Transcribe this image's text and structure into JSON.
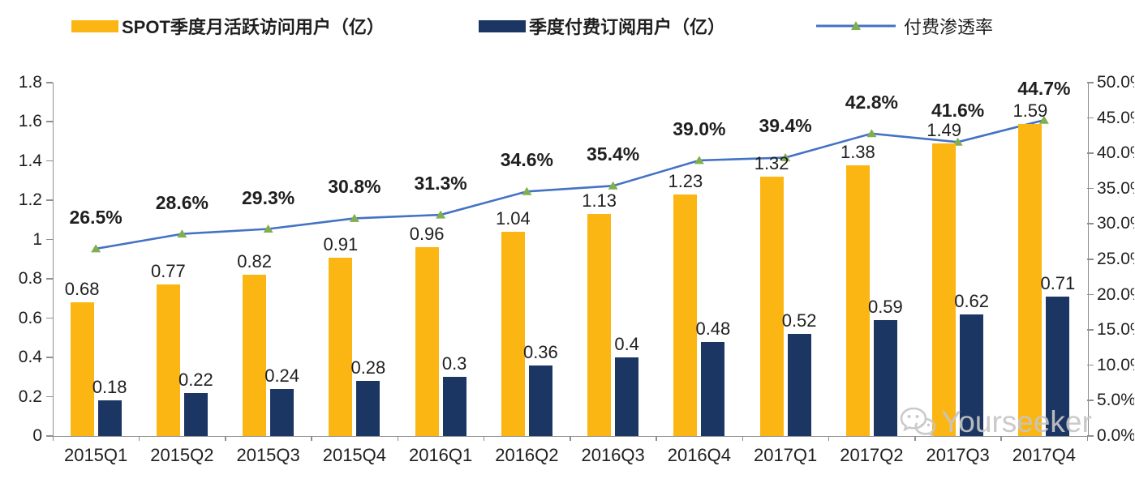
{
  "legend": [
    {
      "label": "SPOT季度月活跃访问用户（亿）",
      "type": "bar",
      "color": "#FCB613"
    },
    {
      "label": "季度付费订阅用户（亿）",
      "type": "bar",
      "color": "#1C3663"
    },
    {
      "label": "付费渗透率",
      "type": "line",
      "color": "#4472C4",
      "marker_color": "#81AE4F"
    }
  ],
  "watermark": {
    "icon": "wechat-icon",
    "text": "Yourseeker"
  },
  "chart_data": {
    "type": "bar",
    "subtype": "grouped-bars-with-line",
    "title": "",
    "xlabel": "",
    "ylabel_left": "",
    "ylabel_right": "",
    "grid": false,
    "legend_position": "top",
    "categories": [
      "2015Q1",
      "2015Q2",
      "2015Q3",
      "2015Q4",
      "2016Q1",
      "2016Q2",
      "2016Q3",
      "2016Q4",
      "2017Q1",
      "2017Q2",
      "2017Q3",
      "2017Q4"
    ],
    "series": [
      {
        "name": "SPOT季度月活跃访问用户（亿）",
        "type": "bar",
        "axis": "left",
        "color": "#FCB613",
        "values": [
          0.68,
          0.77,
          0.82,
          0.91,
          0.96,
          1.04,
          1.13,
          1.23,
          1.32,
          1.38,
          1.49,
          1.59
        ],
        "labels": [
          "0.68",
          "0.77",
          "0.82",
          "0.91",
          "0.96",
          "1.04",
          "1.13",
          "1.23",
          "1.32",
          "1.38",
          "1.49",
          "1.59"
        ]
      },
      {
        "name": "季度付费订阅用户（亿）",
        "type": "bar",
        "axis": "left",
        "color": "#1C3663",
        "values": [
          0.18,
          0.22,
          0.24,
          0.28,
          0.3,
          0.36,
          0.4,
          0.48,
          0.52,
          0.59,
          0.62,
          0.71
        ],
        "labels": [
          "0.18",
          "0.22",
          "0.24",
          "0.28",
          "0.3",
          "0.36",
          "0.4",
          "0.48",
          "0.52",
          "0.59",
          "0.62",
          "0.71"
        ]
      },
      {
        "name": "付费渗透率",
        "type": "line",
        "axis": "right",
        "color": "#4472C4",
        "marker": "triangle",
        "marker_color": "#81AE4F",
        "values": [
          26.5,
          28.6,
          29.3,
          30.8,
          31.3,
          34.6,
          35.4,
          39.0,
          39.4,
          42.8,
          41.6,
          44.7
        ],
        "labels": [
          "26.5%",
          "28.6%",
          "29.3%",
          "30.8%",
          "31.3%",
          "34.6%",
          "35.4%",
          "39.0%",
          "39.4%",
          "42.8%",
          "41.6%",
          "44.7%"
        ]
      }
    ],
    "left_axis": {
      "min": 0,
      "max": 1.8,
      "step": 0.2,
      "ticks": [
        "0",
        "0.2",
        "0.4",
        "0.6",
        "0.8",
        "1",
        "1.2",
        "1.4",
        "1.6",
        "1.8"
      ]
    },
    "right_axis": {
      "min": 0,
      "max": 50,
      "step": 5,
      "ticks": [
        "0.0%",
        "5.0%",
        "10.0%",
        "15.0%",
        "20.0%",
        "25.0%",
        "30.0%",
        "35.0%",
        "40.0%",
        "45.0%",
        "50.0%"
      ]
    }
  }
}
